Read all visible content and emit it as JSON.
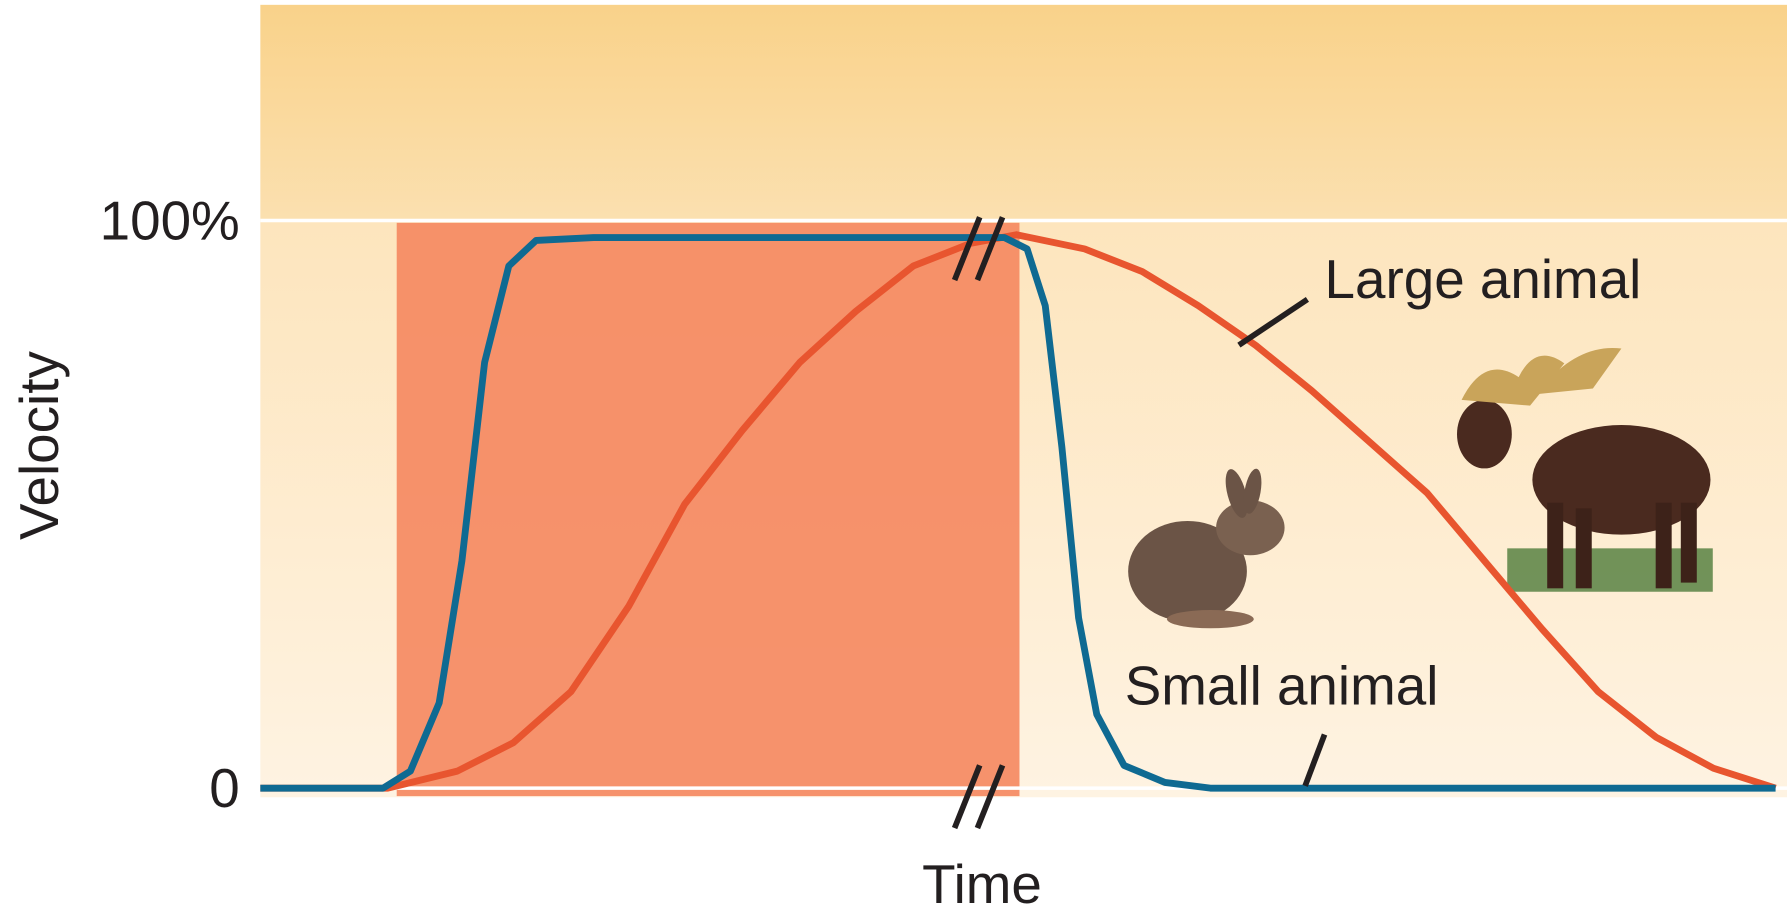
{
  "chart_data": {
    "type": "line",
    "x_label": "Time",
    "y_label": "Velocity",
    "xlim": [
      0,
      100
    ],
    "ylim": [
      0,
      138
    ],
    "yticks": [
      0,
      {
        "value": 100,
        "label": "100%"
      }
    ],
    "grid": true,
    "shade": {
      "xlim": [
        9.0,
        50.1
      ],
      "color": "#f5875f"
    },
    "series": [
      {
        "name": "Small animal",
        "color": "#0f6a92",
        "x": [
          0,
          8.1,
          9.9,
          11.8,
          13.3,
          14.8,
          16.4,
          18.2,
          22.0,
          49.1,
          50.6,
          51.8,
          52.9,
          54.0,
          55.2,
          57.0,
          59.7,
          62.7,
          100
        ],
        "values": [
          0,
          0,
          3,
          15,
          40,
          75,
          92,
          96.5,
          97,
          97,
          95,
          85,
          60,
          30,
          13,
          4,
          1,
          0,
          0
        ]
      },
      {
        "name": "Large animal",
        "color": "#e8552f",
        "x": [
          0,
          8.4,
          13.0,
          16.7,
          20.5,
          24.3,
          28.0,
          31.8,
          35.6,
          39.3,
          43.1,
          46.9,
          49.9,
          54.4,
          58.2,
          61.9,
          65.7,
          69.4,
          73.2,
          77.0,
          80.8,
          84.6,
          88.3,
          92.1,
          95.9,
          100
        ],
        "values": [
          0,
          0,
          3,
          8,
          17,
          32,
          50,
          63,
          75,
          84,
          92,
          96,
          97.5,
          95,
          91,
          85,
          78,
          70,
          61,
          52,
          40,
          28,
          17,
          9,
          3.5,
          0
        ]
      }
    ]
  }
}
